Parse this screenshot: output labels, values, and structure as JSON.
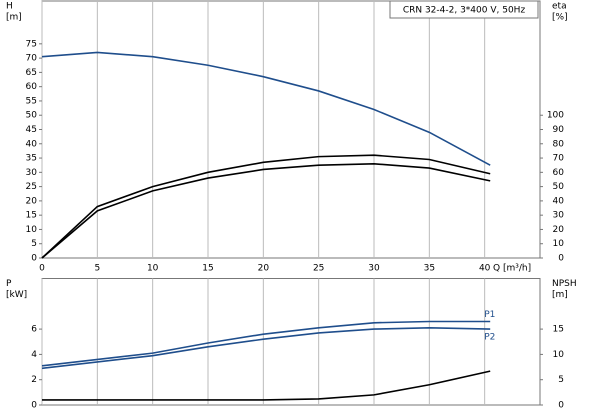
{
  "chart_data": [
    {
      "type": "line",
      "title": "CRN 32-4-2, 3*400 V, 50Hz",
      "ylabel": [
        "H",
        "[m]"
      ],
      "y2label": [
        "eta",
        "[%]"
      ],
      "xlabel": "Q [m³/h]",
      "xlim": [
        0,
        45
      ],
      "xticks": [
        0,
        5,
        10,
        15,
        20,
        25,
        30,
        35,
        40
      ],
      "ylim": [
        0,
        90
      ],
      "yticks": [
        0,
        5,
        10,
        15,
        20,
        25,
        30,
        35,
        40,
        45,
        50,
        55,
        60,
        65,
        70,
        75
      ],
      "y2lim": [
        0,
        180
      ],
      "y2ticks": [
        0,
        10,
        20,
        30,
        40,
        50,
        60,
        70,
        80,
        90,
        100
      ],
      "grid": true,
      "series": [
        {
          "color": "#1f4e8c",
          "x": [
            0,
            5,
            10,
            15,
            20,
            25,
            30,
            35,
            40.5
          ],
          "values": [
            70.5,
            72,
            70.5,
            67.5,
            63.5,
            58.5,
            52,
            44,
            32.5
          ]
        },
        {
          "color": "#000000",
          "axis": "y2",
          "x": [
            0,
            5,
            10,
            15,
            20,
            25,
            30,
            35,
            40.5
          ],
          "values": [
            0,
            36,
            50,
            60,
            67,
            71,
            72,
            69,
            59
          ]
        },
        {
          "color": "#000000",
          "axis": "y2",
          "x": [
            0,
            5,
            10,
            15,
            20,
            25,
            30,
            35,
            40.5
          ],
          "values": [
            0,
            33,
            47,
            56,
            62,
            65,
            66,
            63,
            54
          ]
        }
      ]
    },
    {
      "type": "line",
      "ylabel": [
        "P",
        "[kW]"
      ],
      "y2label": [
        "NPSH",
        "[m]"
      ],
      "xlim": [
        0,
        45
      ],
      "ylim": [
        0,
        10
      ],
      "yticks": [
        0,
        2,
        4,
        6
      ],
      "y2lim": [
        0,
        25
      ],
      "y2ticks": [
        0,
        5,
        10,
        15
      ],
      "grid": true,
      "series": [
        {
          "name": "P1",
          "color": "#1f4e8c",
          "x": [
            0,
            10,
            15,
            20,
            25,
            30,
            35,
            40.5
          ],
          "values": [
            3.1,
            4.1,
            4.9,
            5.6,
            6.1,
            6.5,
            6.6,
            6.6
          ]
        },
        {
          "name": "P2",
          "color": "#1f4e8c",
          "x": [
            0,
            10,
            15,
            20,
            25,
            30,
            35,
            40.5
          ],
          "values": [
            2.9,
            3.9,
            4.6,
            5.2,
            5.7,
            6.0,
            6.1,
            6.0
          ]
        },
        {
          "color": "#000000",
          "axis": "y2",
          "x": [
            0,
            15,
            20,
            25,
            30,
            35,
            40.5
          ],
          "values": [
            1,
            1,
            1,
            1.2,
            2,
            4,
            6.7
          ]
        }
      ]
    }
  ]
}
